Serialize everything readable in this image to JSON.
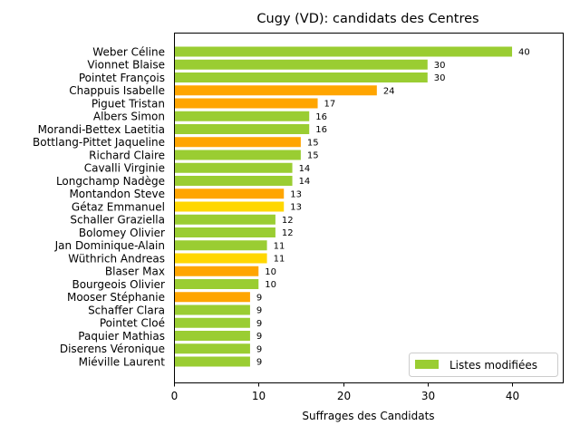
{
  "chart_data": {
    "type": "bar",
    "orientation": "horizontal",
    "title": "Cugy (VD): candidats des Centres",
    "xlabel": "Suffrages des Candidats",
    "ylabel": "",
    "xlim": [
      0,
      46
    ],
    "xticks": [
      0,
      10,
      20,
      30,
      40
    ],
    "grid": false,
    "legend": {
      "placement": "bottom-right",
      "entries": [
        {
          "label": "Listes modifiées",
          "color": "#9acd32"
        }
      ]
    },
    "categories": [
      "Weber Céline",
      "Vionnet Blaise",
      "Pointet François",
      "Chappuis Isabelle",
      "Piguet Tristan",
      "Albers Simon",
      "Morandi-Bettex Laetitia",
      "Bottlang-Pittet Jaqueline",
      "Richard Claire",
      "Cavalli Virginie",
      "Longchamp Nadège",
      "Montandon Steve",
      "Gétaz Emmanuel",
      "Schaller Graziella",
      "Bolomey Olivier",
      "Jan Dominique-Alain",
      "Wüthrich Andreas",
      "Blaser Max",
      "Bourgeois Olivier",
      "Mooser Stéphanie",
      "Schaffer Clara",
      "Pointet Cloé",
      "Paquier Mathias",
      "Diserens Véronique",
      "Miéville Laurent"
    ],
    "values": [
      40,
      30,
      30,
      24,
      17,
      16,
      16,
      15,
      15,
      14,
      14,
      13,
      13,
      12,
      12,
      11,
      11,
      10,
      10,
      9,
      9,
      9,
      9,
      9,
      9
    ],
    "value_labels": [
      "40",
      "30",
      "30",
      "24",
      "17",
      "16",
      "16",
      "15",
      "15",
      "14",
      "14",
      "13",
      "13",
      "12",
      "12",
      "11",
      "11",
      "10",
      "10",
      "9",
      "9",
      "9",
      "9",
      "9",
      "9"
    ],
    "colors": [
      "#9acd32",
      "#9acd32",
      "#9acd32",
      "#ffa500",
      "#ffa500",
      "#9acd32",
      "#9acd32",
      "#ffa500",
      "#9acd32",
      "#9acd32",
      "#9acd32",
      "#ffa500",
      "#ffd700",
      "#9acd32",
      "#9acd32",
      "#9acd32",
      "#ffd700",
      "#ffa500",
      "#9acd32",
      "#ffa500",
      "#9acd32",
      "#9acd32",
      "#9acd32",
      "#9acd32",
      "#9acd32"
    ]
  }
}
